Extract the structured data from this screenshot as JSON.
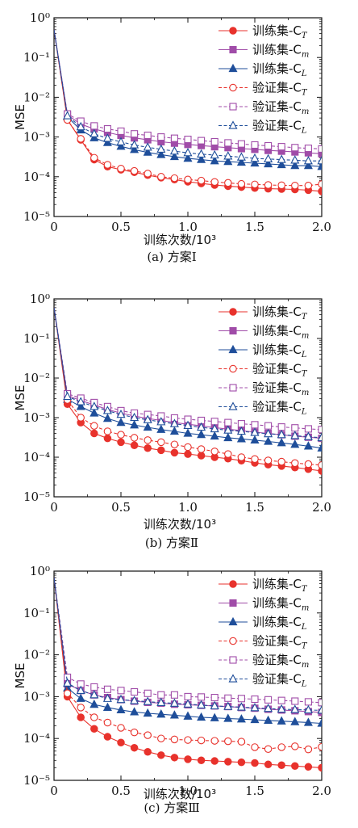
{
  "chart_data": [
    {
      "type": "line",
      "caption": "(a) 方案Ⅰ",
      "xlabel": "训练次数/10³",
      "ylabel": "MSE",
      "xlim": [
        0,
        2.0
      ],
      "ylim": [
        1e-05,
        1
      ],
      "yscale": "log",
      "xticks": [
        "0",
        "0.5",
        "1.0",
        "1.5",
        "2.0"
      ],
      "yticks": [
        "10⁻⁵",
        "10⁻⁴",
        "10⁻³",
        "10⁻²",
        "10⁻¹",
        "10⁰"
      ],
      "legend_position": "top-right",
      "x": [
        0,
        0.1,
        0.2,
        0.3,
        0.4,
        0.5,
        0.6,
        0.7,
        0.8,
        0.9,
        1.0,
        1.1,
        1.2,
        1.3,
        1.4,
        1.5,
        1.6,
        1.7,
        1.8,
        1.9,
        2.0
      ],
      "series": [
        {
          "name": "训练集-C",
          "sub": "T",
          "color": "#e8322c",
          "marker": "circle",
          "filled": true,
          "dashed": false,
          "values": [
            0.5,
            0.0027,
            0.00085,
            0.00027,
            0.00018,
            0.00015,
            0.00013,
            0.00011,
            9.5e-05,
            8.5e-05,
            7.5e-05,
            6.8e-05,
            6.2e-05,
            5.8e-05,
            5.5e-05,
            5.2e-05,
            5e-05,
            4.9e-05,
            4.8e-05,
            4.6e-05,
            4.3e-05
          ]
        },
        {
          "name": "训练集-C",
          "sub": "m",
          "color": "#a04ca8",
          "marker": "square",
          "filled": true,
          "dashed": false,
          "values": [
            0.5,
            0.0036,
            0.0021,
            0.0016,
            0.0013,
            0.0011,
            0.00095,
            0.00085,
            0.00076,
            0.0007,
            0.00065,
            0.00061,
            0.00057,
            0.00054,
            0.00051,
            0.00049,
            0.00046,
            0.00044,
            0.00042,
            0.0004,
            0.00038
          ]
        },
        {
          "name": "训练集-C",
          "sub": "L",
          "color": "#1f4e9a",
          "marker": "triangle",
          "filled": true,
          "dashed": false,
          "values": [
            0.5,
            0.0032,
            0.0015,
            0.00095,
            0.00072,
            0.00058,
            0.00048,
            0.00041,
            0.00036,
            0.00032,
            0.00029,
            0.00027,
            0.00025,
            0.00024,
            0.00023,
            0.00022,
            0.00021,
            0.0002,
            0.00019,
            0.00019,
            0.00018
          ]
        },
        {
          "name": "验证集-C",
          "sub": "T",
          "color": "#e8322c",
          "marker": "circle",
          "filled": false,
          "dashed": true,
          "values": [
            0.5,
            0.0027,
            0.0009,
            0.0003,
            0.0002,
            0.00016,
            0.00014,
            0.00012,
            0.0001,
            9.2e-05,
            8.5e-05,
            8e-05,
            7.4e-05,
            7e-05,
            6.6e-05,
            6.4e-05,
            6.2e-05,
            6.1e-05,
            6e-05,
            6e-05,
            6.5e-05
          ]
        },
        {
          "name": "验证集-C",
          "sub": "m",
          "color": "#a04ca8",
          "marker": "square",
          "filled": false,
          "dashed": true,
          "values": [
            0.5,
            0.0038,
            0.0025,
            0.0019,
            0.0016,
            0.0014,
            0.0012,
            0.0011,
            0.001,
            0.00093,
            0.00087,
            0.00081,
            0.00076,
            0.00071,
            0.00067,
            0.00063,
            0.0006,
            0.00057,
            0.00054,
            0.00052,
            0.0005
          ]
        },
        {
          "name": "验证集-C",
          "sub": "L",
          "color": "#1f4e9a",
          "marker": "triangle",
          "filled": false,
          "dashed": true,
          "values": [
            0.5,
            0.0034,
            0.0018,
            0.0012,
            0.00092,
            0.00075,
            0.00063,
            0.00055,
            0.00049,
            0.00044,
            0.0004,
            0.00037,
            0.00035,
            0.00033,
            0.00031,
            0.00029,
            0.00028,
            0.00027,
            0.00026,
            0.00025,
            0.00025
          ]
        }
      ]
    },
    {
      "type": "line",
      "caption": "(b) 方案Ⅱ",
      "xlabel": "训练次数/10³",
      "ylabel": "MSE",
      "xlim": [
        0,
        2.0
      ],
      "ylim": [
        1e-05,
        1
      ],
      "yscale": "log",
      "xticks": [
        "0",
        "0.5",
        "1.0",
        "1.5",
        "2.0"
      ],
      "yticks": [
        "10⁻⁵",
        "10⁻⁴",
        "10⁻³",
        "10⁻²",
        "10⁻¹",
        "10⁰"
      ],
      "legend_position": "top-right",
      "x": [
        0,
        0.1,
        0.2,
        0.3,
        0.4,
        0.5,
        0.6,
        0.7,
        0.8,
        0.9,
        1.0,
        1.1,
        1.2,
        1.3,
        1.4,
        1.5,
        1.6,
        1.7,
        1.8,
        1.9,
        2.0
      ],
      "series": [
        {
          "name": "训练集-C",
          "sub": "T",
          "color": "#e8322c",
          "marker": "circle",
          "filled": true,
          "dashed": false,
          "values": [
            0.6,
            0.0022,
            0.00075,
            0.0004,
            0.0003,
            0.00024,
            0.0002,
            0.00017,
            0.00015,
            0.00013,
            0.00012,
            0.00011,
            0.0001,
            9.2e-05,
            8.2e-05,
            7.2e-05,
            6.5e-05,
            6e-05,
            5.5e-05,
            5e-05,
            4.5e-05
          ]
        },
        {
          "name": "训练集-C",
          "sub": "m",
          "color": "#a04ca8",
          "marker": "square",
          "filled": true,
          "dashed": false,
          "values": [
            0.6,
            0.0036,
            0.0027,
            0.0021,
            0.0016,
            0.0013,
            0.0011,
            0.00095,
            0.00085,
            0.00075,
            0.00068,
            0.00062,
            0.00056,
            0.00051,
            0.00047,
            0.00043,
            0.0004,
            0.00037,
            0.00034,
            0.00032,
            0.0003
          ]
        },
        {
          "name": "训练集-C",
          "sub": "L",
          "color": "#1f4e9a",
          "marker": "triangle",
          "filled": true,
          "dashed": false,
          "values": [
            0.6,
            0.0029,
            0.0019,
            0.0013,
            0.00095,
            0.00075,
            0.00065,
            0.00057,
            0.0005,
            0.00045,
            0.0004,
            0.00037,
            0.00034,
            0.00031,
            0.00029,
            0.00027,
            0.00025,
            0.00023,
            0.00021,
            0.00019,
            0.00017
          ]
        },
        {
          "name": "验证集-C",
          "sub": "T",
          "color": "#e8322c",
          "marker": "circle",
          "filled": false,
          "dashed": true,
          "values": [
            0.6,
            0.0028,
            0.001,
            0.00062,
            0.00045,
            0.00037,
            0.00031,
            0.00027,
            0.00024,
            0.00021,
            0.00018,
            0.00016,
            0.00014,
            0.00012,
            0.0001,
            9e-05,
            8.3e-05,
            7.7e-05,
            7.1e-05,
            6.7e-05,
            6.3e-05
          ]
        },
        {
          "name": "验证集-C",
          "sub": "m",
          "color": "#a04ca8",
          "marker": "square",
          "filled": false,
          "dashed": true,
          "values": [
            0.6,
            0.004,
            0.0031,
            0.0024,
            0.0019,
            0.0015,
            0.0013,
            0.0012,
            0.0011,
            0.00098,
            0.00091,
            0.00085,
            0.0008,
            0.00075,
            0.0007,
            0.00066,
            0.00062,
            0.00058,
            0.00055,
            0.00052,
            0.0005
          ]
        },
        {
          "name": "验证集-C",
          "sub": "L",
          "color": "#1f4e9a",
          "marker": "triangle",
          "filled": false,
          "dashed": true,
          "values": [
            0.6,
            0.0034,
            0.0025,
            0.0019,
            0.0015,
            0.0012,
            0.001,
            0.00088,
            0.00078,
            0.0007,
            0.00063,
            0.00057,
            0.00052,
            0.00048,
            0.00045,
            0.00042,
            0.00039,
            0.00037,
            0.00035,
            0.00033,
            0.00031
          ]
        }
      ]
    },
    {
      "type": "line",
      "caption": "(c) 方案Ⅲ",
      "xlabel": "训练次数/10³",
      "ylabel": "MSE",
      "xlim": [
        0,
        2.0
      ],
      "ylim": [
        1e-05,
        1
      ],
      "yscale": "log",
      "xticks": [
        "0",
        "0.5",
        "1.0",
        "1.5",
        "2.0"
      ],
      "yticks": [
        "10⁻⁵",
        "10⁻⁴",
        "10⁻³",
        "10⁻²",
        "10⁻¹",
        "10⁰"
      ],
      "legend_position": "top-right",
      "x": [
        0,
        0.1,
        0.2,
        0.3,
        0.4,
        0.5,
        0.6,
        0.7,
        0.8,
        0.9,
        1.0,
        1.1,
        1.2,
        1.3,
        1.4,
        1.5,
        1.6,
        1.7,
        1.8,
        1.9,
        2.0
      ],
      "series": [
        {
          "name": "训练集-C",
          "sub": "T",
          "color": "#e8322c",
          "marker": "circle",
          "filled": true,
          "dashed": false,
          "values": [
            0.7,
            0.001,
            0.00032,
            0.00017,
            0.00011,
            8e-05,
            6e-05,
            4.8e-05,
            4e-05,
            3.5e-05,
            3.2e-05,
            3e-05,
            2.9e-05,
            2.8e-05,
            2.7e-05,
            2.6e-05,
            2.4e-05,
            2.3e-05,
            2.2e-05,
            2.1e-05,
            2e-05
          ]
        },
        {
          "name": "训练集-C",
          "sub": "m",
          "color": "#a04ca8",
          "marker": "square",
          "filled": true,
          "dashed": false,
          "values": [
            0.7,
            0.002,
            0.0014,
            0.0011,
            0.00095,
            0.00085,
            0.00078,
            0.00073,
            0.0007,
            0.00066,
            0.00064,
            0.00062,
            0.0006,
            0.00058,
            0.00055,
            0.00053,
            0.0005,
            0.00048,
            0.00046,
            0.00044,
            0.00042
          ]
        },
        {
          "name": "训练集-C",
          "sub": "L",
          "color": "#1f4e9a",
          "marker": "triangle",
          "filled": true,
          "dashed": false,
          "values": [
            0.7,
            0.0016,
            0.0009,
            0.00065,
            0.00055,
            0.00048,
            0.00043,
            0.0004,
            0.00038,
            0.00036,
            0.00034,
            0.00032,
            0.00031,
            0.0003,
            0.00029,
            0.00028,
            0.00027,
            0.00026,
            0.00025,
            0.00024,
            0.00023
          ]
        },
        {
          "name": "验证集-C",
          "sub": "T",
          "color": "#e8322c",
          "marker": "circle",
          "filled": false,
          "dashed": true,
          "values": [
            0.7,
            0.0012,
            0.00055,
            0.00032,
            0.00024,
            0.00018,
            0.00014,
            0.00012,
            0.0001,
            9.5e-05,
            9.2e-05,
            9e-05,
            8.8e-05,
            8.6e-05,
            8.4e-05,
            6.2e-05,
            5.6e-05,
            6.2e-05,
            6.5e-05,
            5.5e-05,
            6.3e-05
          ]
        },
        {
          "name": "验证集-C",
          "sub": "m",
          "color": "#a04ca8",
          "marker": "square",
          "filled": false,
          "dashed": true,
          "values": [
            0.7,
            0.0029,
            0.002,
            0.0017,
            0.0015,
            0.0014,
            0.0013,
            0.0012,
            0.0011,
            0.0011,
            0.001,
            0.00098,
            0.00095,
            0.00092,
            0.0009,
            0.00087,
            0.00084,
            0.00081,
            0.00078,
            0.00075,
            0.00072
          ]
        },
        {
          "name": "验证集-C",
          "sub": "L",
          "color": "#1f4e9a",
          "marker": "triangle",
          "filled": false,
          "dashed": true,
          "values": [
            0.7,
            0.0021,
            0.0014,
            0.0011,
            0.0009,
            0.00085,
            0.0008,
            0.00076,
            0.00072,
            0.00069,
            0.00066,
            0.00063,
            0.0006,
            0.00058,
            0.00056,
            0.00054,
            0.00052,
            0.0005,
            0.00049,
            0.00048,
            0.00047
          ]
        }
      ]
    }
  ]
}
